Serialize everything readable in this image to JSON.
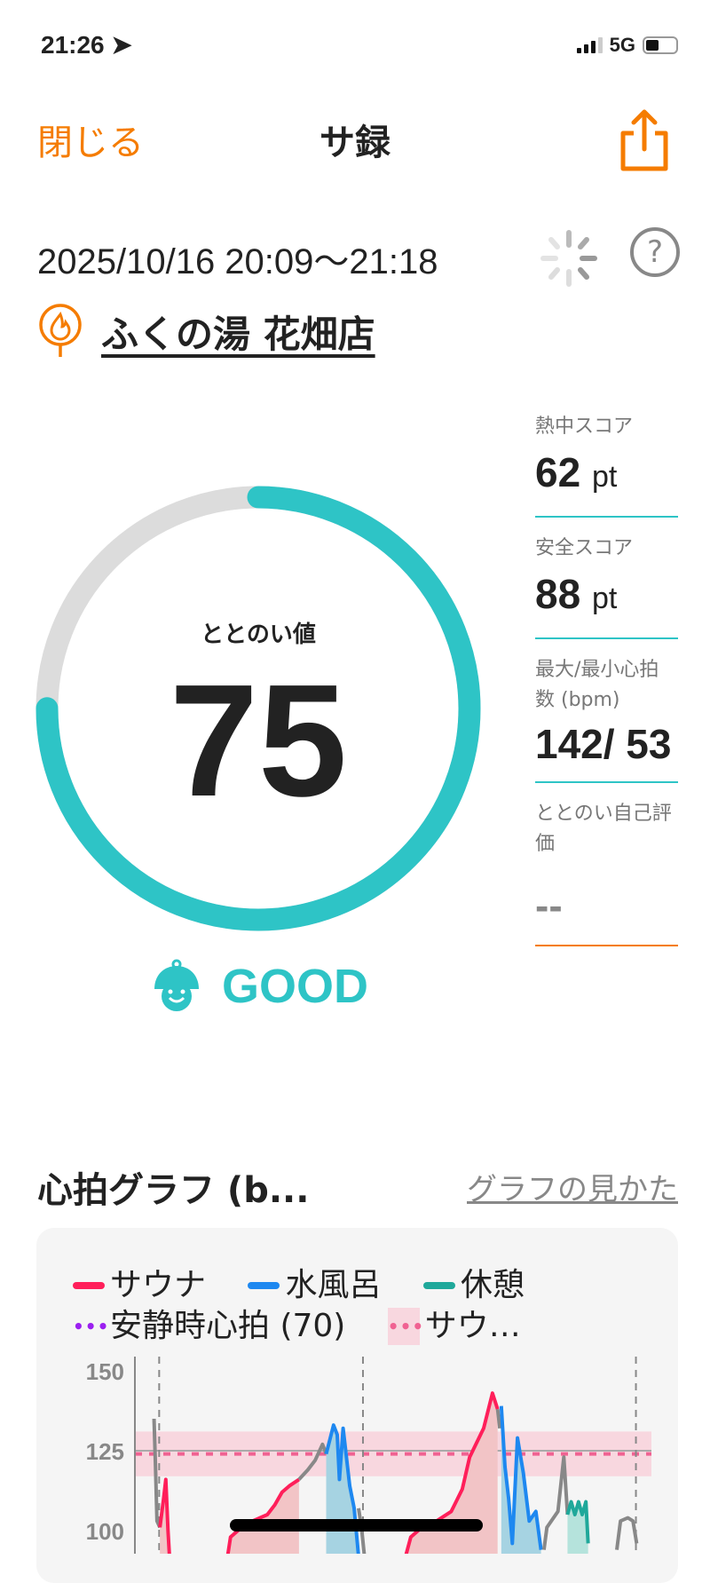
{
  "status": {
    "time": "21:26",
    "network": "5G",
    "battery_level": 0.45
  },
  "nav": {
    "close_label": "閉じる",
    "title": "サ録",
    "share_icon": "share-icon"
  },
  "session": {
    "datetime": "2025/10/16 20:09〜21:18",
    "venue": "ふくの湯 花畑店"
  },
  "score": {
    "label": "ととのい値",
    "value": 75,
    "max": 100,
    "grade": "GOOD"
  },
  "metrics": [
    {
      "label": "熱中スコア",
      "value": "62",
      "unit": "pt"
    },
    {
      "label": "安全スコア",
      "value": "88",
      "unit": "pt"
    },
    {
      "label": "最大/最小心拍数 (bpm)",
      "value": "142/ 53",
      "unit": ""
    },
    {
      "label": "ととのい自己評価",
      "value": "--",
      "unit": ""
    }
  ],
  "graph": {
    "title": "心拍グラフ (b...",
    "help_link": "グラフの見かた"
  },
  "colors": {
    "accent": "#f57c00",
    "teal": "#2ec4c6",
    "sauna": "#ff1f5a",
    "water": "#1e88f0",
    "rest": "#1fa89a",
    "other": "#888888",
    "resting": "#9b1ff0"
  },
  "chart_data": {
    "type": "line",
    "legend": [
      {
        "name": "サウナ",
        "style": "solid",
        "color": "#ff1f5a"
      },
      {
        "name": "水風呂",
        "style": "solid",
        "color": "#1e88f0"
      },
      {
        "name": "休憩",
        "style": "solid",
        "color": "#1fa89a"
      },
      {
        "name": "安静時心拍 (70)",
        "style": "dotted",
        "color": "#9b1ff0"
      },
      {
        "name": "サウ…",
        "style": "dotted-band",
        "color": "#f06292"
      }
    ],
    "y_ticks": [
      150,
      125,
      100
    ],
    "ylim": [
      95,
      150
    ],
    "xlim_minutes": [
      0,
      69
    ],
    "band": [
      117,
      131
    ],
    "band_line": 124,
    "vertical_markers_minutes": [
      3.3,
      31,
      68.1
    ],
    "segments": [
      {
        "phase": "other",
        "points": [
          [
            2.6,
            135
          ],
          [
            2.8,
            120
          ],
          [
            3.0,
            103
          ],
          [
            3.4,
            101
          ]
        ]
      },
      {
        "phase": "sauna",
        "points": [
          [
            3.4,
            101
          ],
          [
            3.9,
            110
          ],
          [
            4.2,
            116
          ],
          [
            4.5,
            100
          ],
          [
            4.8,
            88
          ]
        ]
      },
      {
        "phase": "sauna",
        "points": [
          [
            12.6,
            92
          ],
          [
            13,
            98
          ],
          [
            14,
            100
          ],
          [
            16,
            103
          ],
          [
            18,
            105
          ],
          [
            19,
            108
          ],
          [
            20,
            112
          ],
          [
            21,
            114
          ],
          [
            22.3,
            116
          ]
        ]
      },
      {
        "phase": "other",
        "points": [
          [
            22.3,
            116
          ],
          [
            23.5,
            119
          ],
          [
            24.5,
            122
          ],
          [
            25.5,
            127
          ],
          [
            26,
            124
          ]
        ]
      },
      {
        "phase": "water",
        "points": [
          [
            26,
            124
          ],
          [
            27,
            133
          ],
          [
            27.5,
            130
          ],
          [
            27.8,
            116
          ],
          [
            28.3,
            132
          ],
          [
            29.2,
            114
          ],
          [
            29.8,
            107
          ],
          [
            30.4,
            92
          ]
        ]
      },
      {
        "phase": "other",
        "points": [
          [
            30.4,
            107
          ],
          [
            30.8,
            101
          ],
          [
            31.2,
            92
          ]
        ]
      },
      {
        "phase": "sauna",
        "points": [
          [
            36.8,
            92
          ],
          [
            37.5,
            98
          ],
          [
            39,
            101
          ],
          [
            41,
            103
          ],
          [
            43,
            106
          ],
          [
            44.5,
            113
          ],
          [
            45.5,
            123
          ],
          [
            47.4,
            132
          ],
          [
            48.6,
            143
          ],
          [
            49.3,
            138
          ]
        ]
      },
      {
        "phase": "other",
        "points": [
          [
            49.3,
            138
          ],
          [
            49.6,
            132
          ]
        ]
      },
      {
        "phase": "water",
        "points": [
          [
            49.8,
            139
          ],
          [
            50.3,
            120
          ],
          [
            50.8,
            110
          ],
          [
            51.3,
            96
          ],
          [
            52,
            129
          ],
          [
            52.8,
            118
          ],
          [
            53.6,
            103
          ],
          [
            54.5,
            106
          ],
          [
            55.2,
            94
          ]
        ]
      },
      {
        "phase": "other",
        "points": [
          [
            55.6,
            94
          ],
          [
            56,
            101
          ],
          [
            57.5,
            106
          ],
          [
            58.3,
            123
          ],
          [
            58.8,
            105
          ]
        ]
      },
      {
        "phase": "rest",
        "points": [
          [
            58.8,
            105
          ],
          [
            59.3,
            109
          ],
          [
            59.8,
            105
          ],
          [
            60.3,
            109
          ],
          [
            60.8,
            105
          ],
          [
            61.3,
            109
          ],
          [
            61.6,
            96
          ]
        ]
      },
      {
        "phase": "other",
        "points": [
          [
            65.5,
            94
          ],
          [
            66,
            103
          ],
          [
            67,
            104
          ],
          [
            67.7,
            103
          ],
          [
            68.2,
            96
          ]
        ]
      }
    ]
  }
}
